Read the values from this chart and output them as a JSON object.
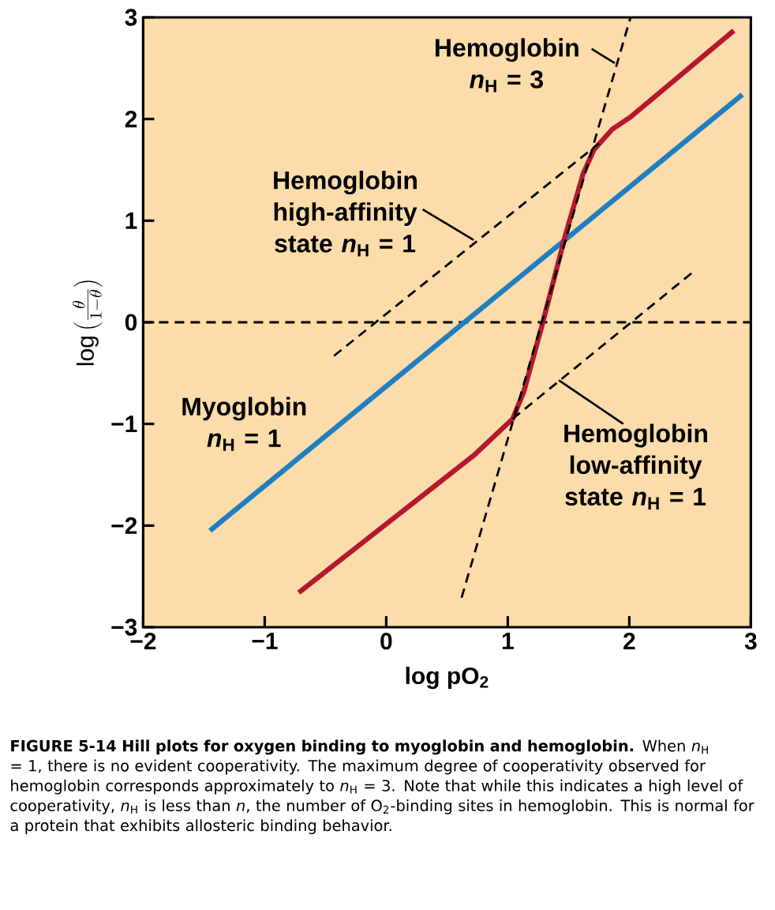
{
  "chart_data": {
    "type": "line",
    "xlabel": "log pO$_{2}$",
    "ylabel": "\\log\\left(\\frac{\\theta}{1-\\theta}\\right)",
    "xlim": [
      -2,
      3
    ],
    "ylim": [
      -3,
      3
    ],
    "xticks": [
      {
        "value": -2,
        "label": "−2"
      },
      {
        "value": -1,
        "label": "−1"
      },
      0,
      1,
      2,
      3
    ],
    "yticks": [
      {
        "value": -3,
        "label": "−3"
      },
      {
        "value": -2,
        "label": "−2"
      },
      {
        "value": -1,
        "label": "−1"
      },
      0,
      1,
      2,
      3
    ],
    "grid": false,
    "marker": "none",
    "series": [
      {
        "color": "#1f7fc0",
        "x": [
          -1.45,
          2.93
        ],
        "values": [
          -2.05,
          2.24
        ]
      },
      {
        "color": "#b5182f",
        "x": [
          -0.72,
          0.72,
          1.04,
          1.13,
          1.28,
          1.47,
          1.62,
          1.71,
          1.86,
          2.01,
          2.86
        ],
        "values": [
          -2.66,
          -1.31,
          -0.95,
          -0.69,
          -0.04,
          0.84,
          1.46,
          1.7,
          1.9,
          2.02,
          2.87
        ]
      },
      {
        "color": "#000000",
        "line_style": "dashed",
        "x": [
          -0.43,
          1.75
        ],
        "values": [
          -0.33,
          1.76
        ]
      },
      {
        "color": "#000000",
        "line_style": "dashed",
        "x": [
          1.04,
          2.55
        ],
        "values": [
          -0.95,
          0.52
        ]
      },
      {
        "color": "#000000",
        "line_style": "dashed",
        "x": [
          0.62,
          2.01
        ],
        "values": [
          -2.71,
          3.0
        ]
      }
    ],
    "ref_lines": [
      {
        "axis": "y",
        "value": 0,
        "color": "#000000",
        "line_style": "dashed"
      }
    ],
    "annotations": [
      {
        "text": "Hemoglobin *n*$_{H}$ = 3",
        "x": 1.88,
        "y": 2.55
      },
      {
        "text": "Hemoglobin high-affinity state *n*$_{H}$ = 1",
        "x": 0.72,
        "y": 0.81
      },
      "Myoglobin *n*$_{H}$ = 1",
      {
        "text": "Hemoglobin low-affinity state *n*$_{H}$ = 1",
        "x": 1.42,
        "y": -0.57
      },
      "**FIGURE 5-14 Hill plots for oxygen binding to myoglobin and hemoglobin.** When *n*$_{H}$ = 1, there is no evident cooperativity. The maximum degree of cooperativity observed for hemoglobin corresponds approximately to *n*$_{H}$ = 3. Note that while this indicates a high level of cooperativity, *n*$_{H}$ is less than *n*, the number of O$_{2}$-binding sites in hemoglobin. This is normal for a protein that exhibits allosteric binding behavior."
    ]
  }
}
